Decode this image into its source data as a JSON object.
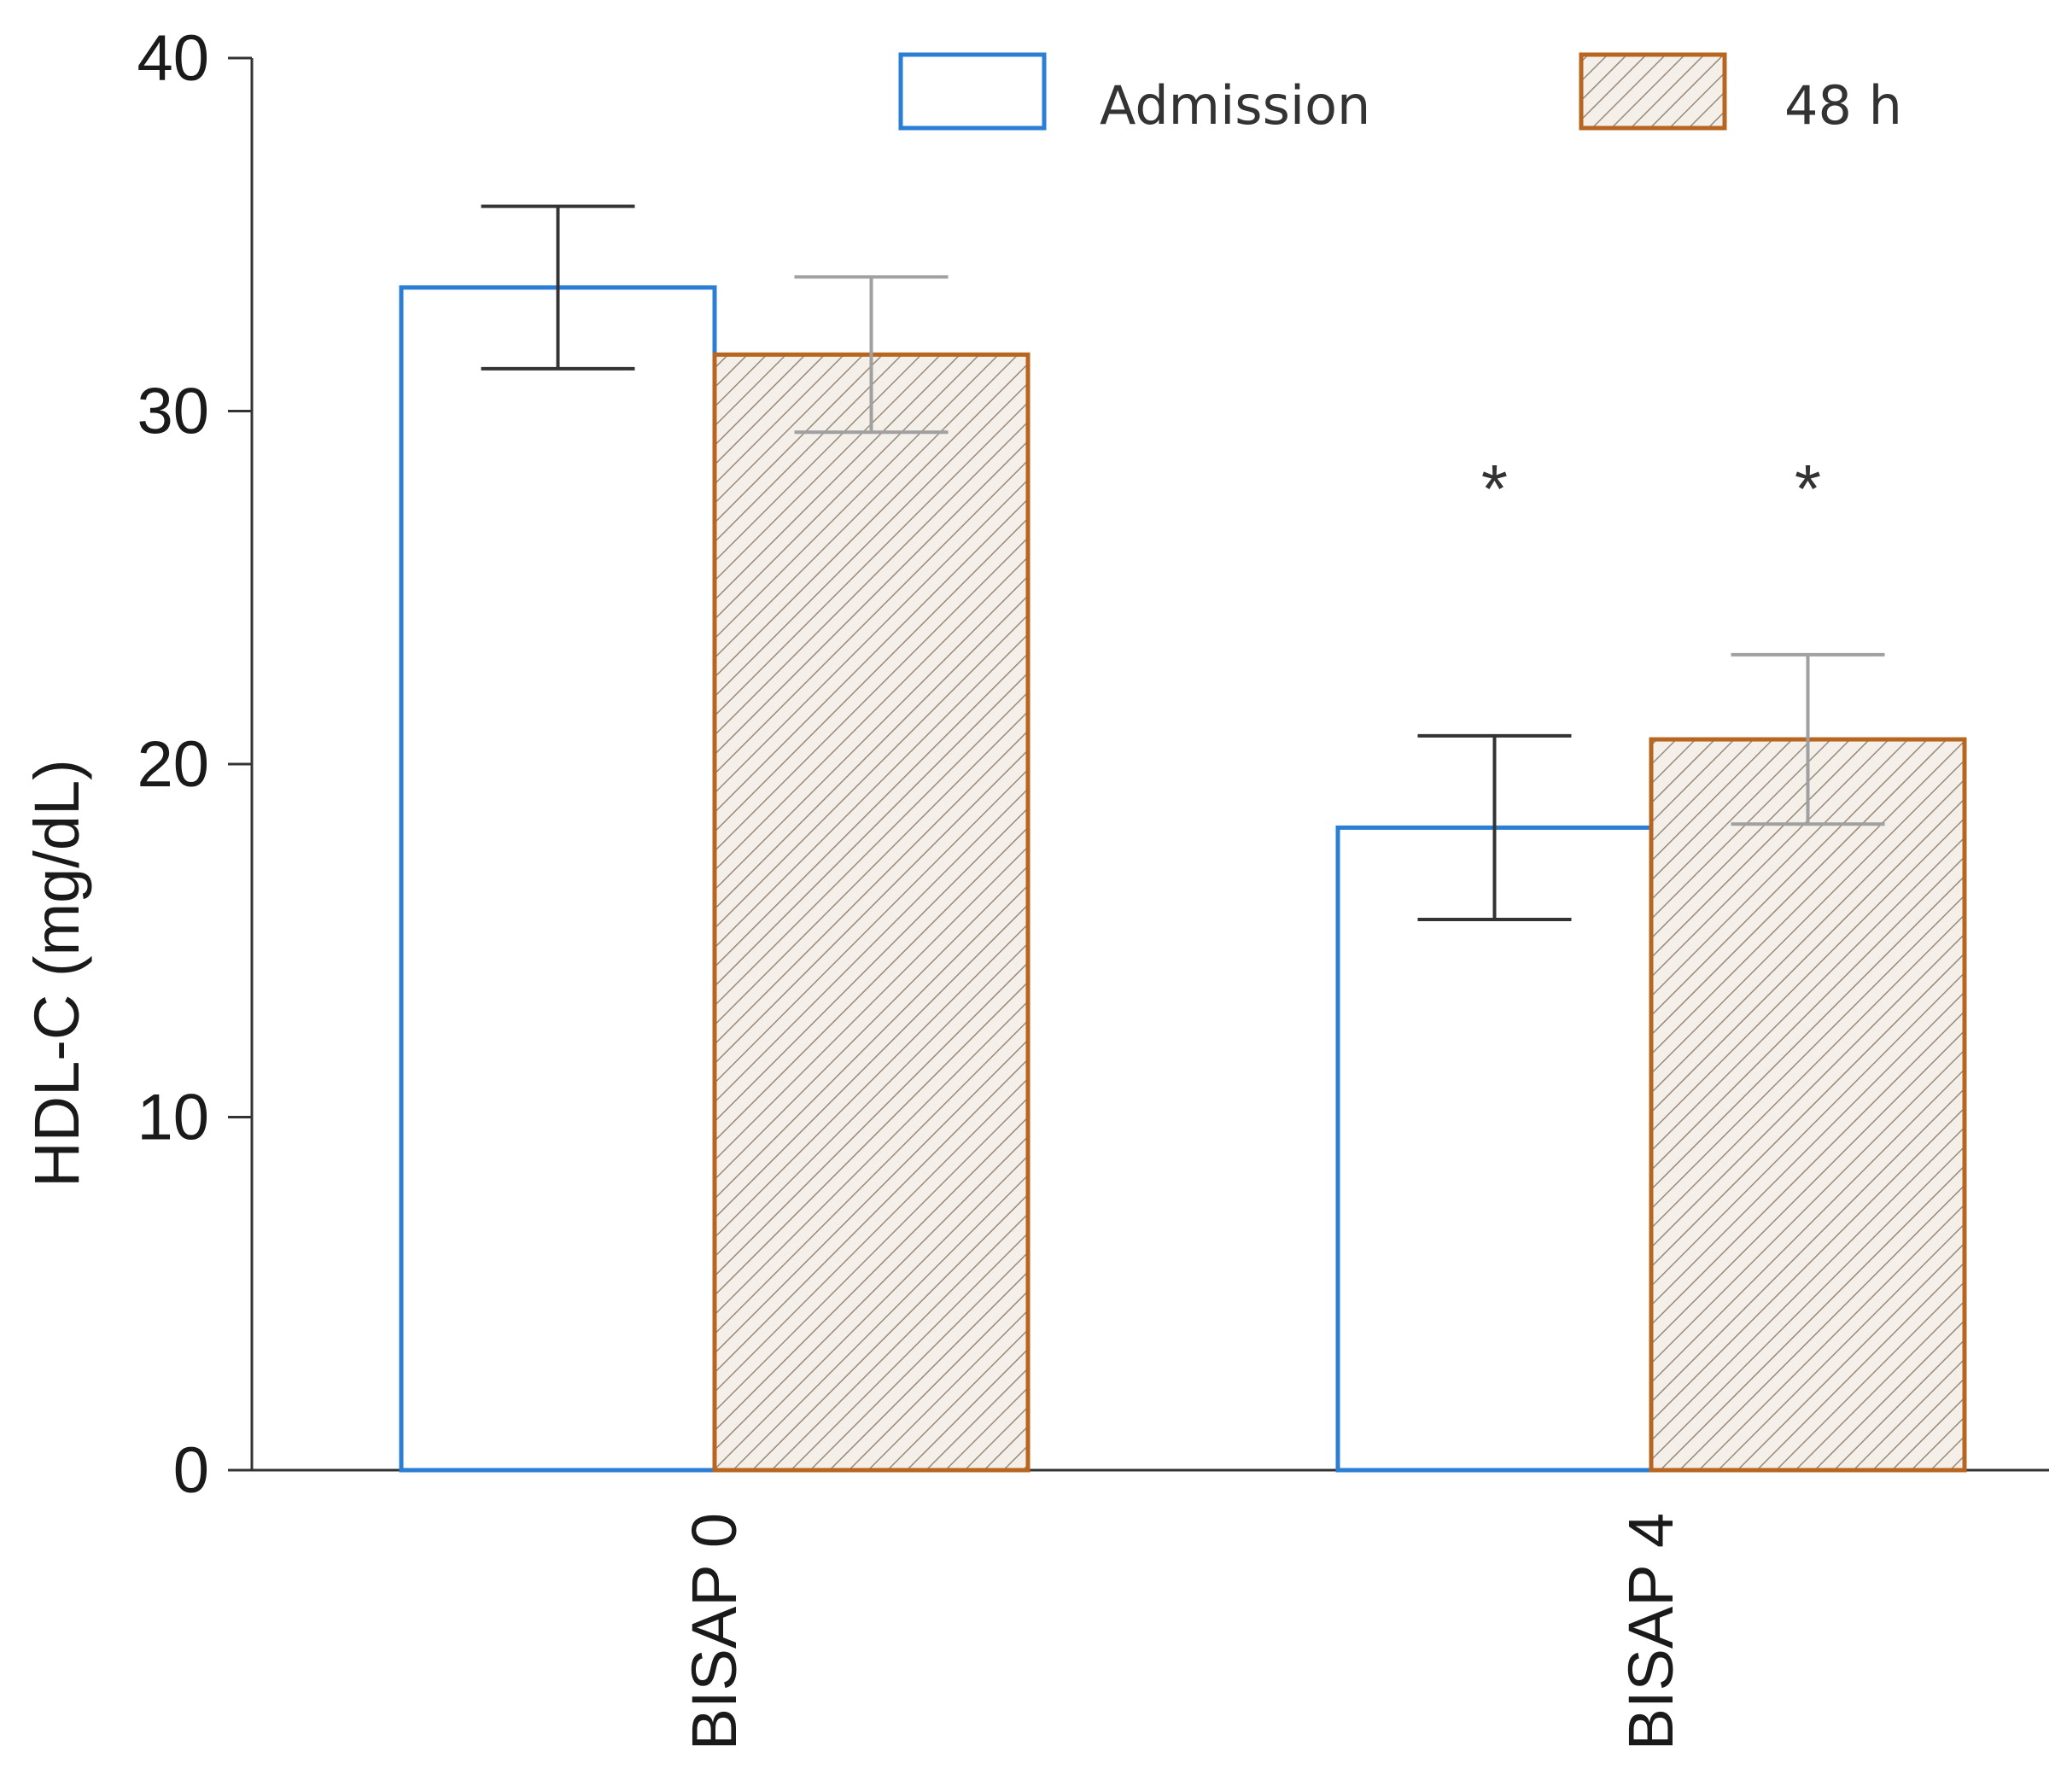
{
  "chart_data": {
    "type": "bar",
    "title": "",
    "xlabel": "",
    "ylabel": "HDL-C (mg/dL)",
    "ylim": [
      0,
      40
    ],
    "yticks": [
      0,
      10,
      20,
      30,
      40
    ],
    "categories": [
      "BISAP 0",
      "BISAP 4"
    ],
    "series": [
      {
        "name": "Admission",
        "values": [
          33.5,
          18.2
        ],
        "errors": [
          2.3,
          2.6
        ],
        "color": "#2a7fd4",
        "pattern": "none"
      },
      {
        "name": "48 h",
        "values": [
          31.6,
          20.7
        ],
        "errors": [
          2.2,
          2.4
        ],
        "color": "#b8651f",
        "pattern": "hatch"
      }
    ],
    "annotations": [
      {
        "category": "BISAP 4",
        "series": "Admission",
        "text": "*"
      },
      {
        "category": "BISAP 4",
        "series": "48 h",
        "text": "*"
      }
    ],
    "legend": "top-right",
    "grid": false
  }
}
